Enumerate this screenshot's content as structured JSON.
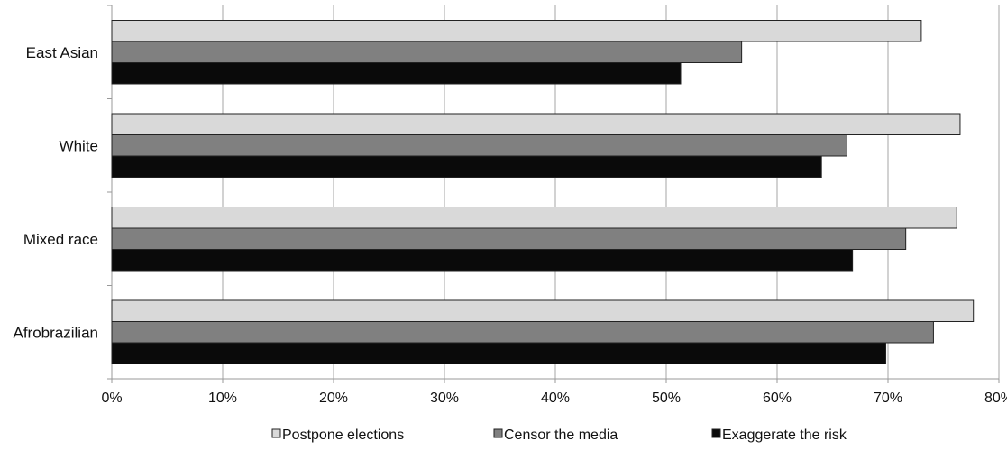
{
  "chart_data": {
    "type": "bar",
    "orientation": "horizontal",
    "categories": [
      "East Asian",
      "White",
      "Mixed race",
      "Afrobrazilian"
    ],
    "series": [
      {
        "name": "Postpone elections",
        "color": "#d9d9d9",
        "values": [
          73.0,
          76.5,
          76.2,
          77.7
        ]
      },
      {
        "name": "Censor the media",
        "color": "#808080",
        "values": [
          56.8,
          66.3,
          71.6,
          74.1
        ]
      },
      {
        "name": "Exaggerate the risk",
        "color": "#0a0a0a",
        "values": [
          51.3,
          64.0,
          66.8,
          69.8
        ]
      }
    ],
    "xlim": [
      0,
      80
    ],
    "x_ticks": [
      0,
      10,
      20,
      30,
      40,
      50,
      60,
      70,
      80
    ],
    "x_tick_labels": [
      "0%",
      "10%",
      "20%",
      "30%",
      "40%",
      "50%",
      "60%",
      "70%",
      "80%"
    ],
    "title": "",
    "xlabel": "",
    "ylabel": "",
    "grid": "vertical",
    "legend_position": "bottom",
    "axis_color": "#999999",
    "grid_color": "#a6a6a6",
    "bar_stroke_color": "#222222"
  }
}
